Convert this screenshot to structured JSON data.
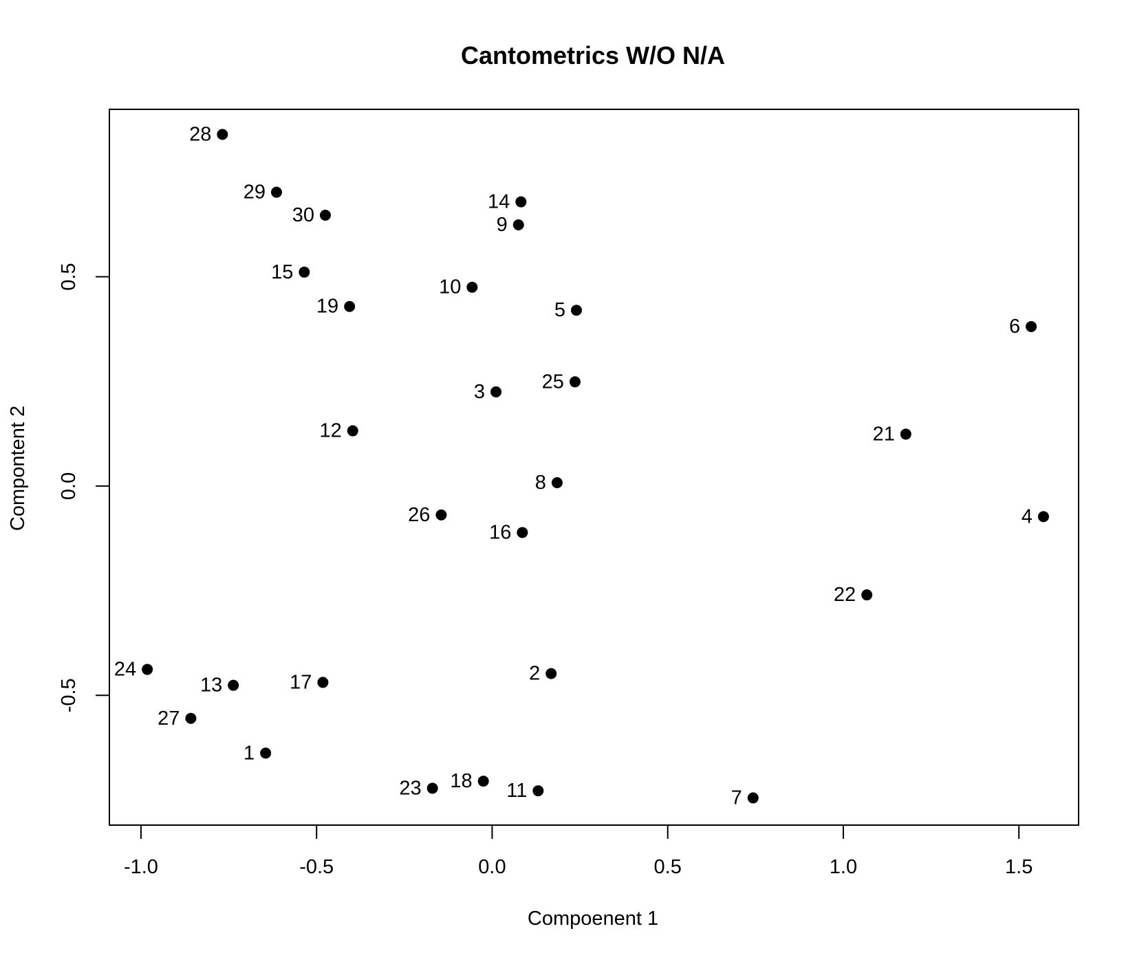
{
  "chart_data": {
    "type": "scatter",
    "title": "Cantometrics W/O N/A",
    "xlabel": "Compoenent 1",
    "ylabel": "Compontent 2",
    "xlim": [
      -1.09,
      1.67
    ],
    "ylim": [
      -0.81,
      0.9
    ],
    "x_ticks": [
      -1.0,
      -0.5,
      0.0,
      0.5,
      1.0,
      1.5
    ],
    "x_tick_labels": [
      "-1.0",
      "-0.5",
      "0.0",
      "0.5",
      "1.0",
      "1.5"
    ],
    "y_ticks": [
      -0.5,
      0.0,
      0.5
    ],
    "y_tick_labels": [
      "-0.5",
      "0.0",
      "0.5"
    ],
    "grid": false,
    "legend": "none",
    "marker_color": "#000000",
    "points": [
      {
        "label": "1",
        "x": -0.645,
        "y": -0.638
      },
      {
        "label": "2",
        "x": 0.168,
        "y": -0.448
      },
      {
        "label": "3",
        "x": 0.011,
        "y": 0.225
      },
      {
        "label": "4",
        "x": 1.57,
        "y": -0.073
      },
      {
        "label": "5",
        "x": 0.24,
        "y": 0.42
      },
      {
        "label": "6",
        "x": 1.535,
        "y": 0.381
      },
      {
        "label": "7",
        "x": 0.743,
        "y": -0.745
      },
      {
        "label": "8",
        "x": 0.185,
        "y": 0.008
      },
      {
        "label": "9",
        "x": 0.075,
        "y": 0.624
      },
      {
        "label": "10",
        "x": -0.057,
        "y": 0.475
      },
      {
        "label": "11",
        "x": 0.131,
        "y": -0.728
      },
      {
        "label": "12",
        "x": -0.397,
        "y": 0.132
      },
      {
        "label": "13",
        "x": -0.737,
        "y": -0.476
      },
      {
        "label": "14",
        "x": 0.082,
        "y": 0.679
      },
      {
        "label": "15",
        "x": -0.535,
        "y": 0.511
      },
      {
        "label": "16",
        "x": 0.086,
        "y": -0.111
      },
      {
        "label": "17",
        "x": -0.482,
        "y": -0.469
      },
      {
        "label": "18",
        "x": -0.025,
        "y": -0.705
      },
      {
        "label": "19",
        "x": -0.406,
        "y": 0.429
      },
      {
        "label": "21",
        "x": 1.178,
        "y": 0.124
      },
      {
        "label": "22",
        "x": 1.067,
        "y": -0.26
      },
      {
        "label": "23",
        "x": -0.17,
        "y": -0.722
      },
      {
        "label": "24",
        "x": -0.982,
        "y": -0.438
      },
      {
        "label": "25",
        "x": 0.236,
        "y": 0.249
      },
      {
        "label": "26",
        "x": -0.145,
        "y": -0.069
      },
      {
        "label": "27",
        "x": -0.858,
        "y": -0.555
      },
      {
        "label": "28",
        "x": -0.768,
        "y": 0.84
      },
      {
        "label": "29",
        "x": -0.614,
        "y": 0.702
      },
      {
        "label": "30",
        "x": -0.475,
        "y": 0.647
      }
    ]
  }
}
